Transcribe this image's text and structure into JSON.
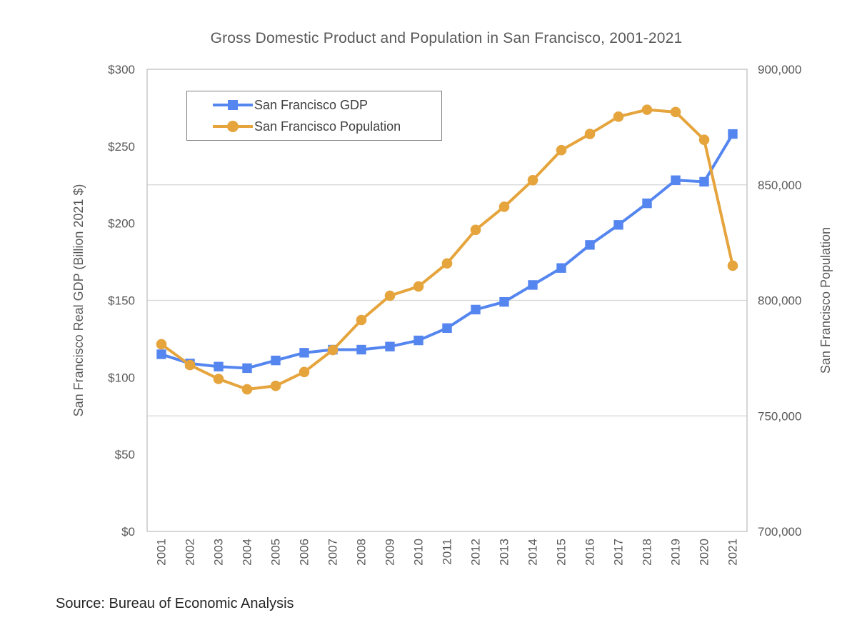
{
  "title": {
    "text": "Gross Domestic Product and Population in San Francisco, 2001-2021"
  },
  "source_note": "Source: Bureau of Economic Analysis",
  "colors": {
    "gdp_series": "#5586F0",
    "population_series": "#E5A43C",
    "gridline": "#D6D6D6",
    "plot_border": "#BFBFBF",
    "axis_text": "#595959",
    "title_text": "#595959",
    "legend_text": "#3F3F3F",
    "legend_border": "#7F7F7F",
    "source_text": "#262626"
  },
  "legend": {
    "position": "top-left-inside",
    "items": [
      {
        "label": "San Francisco GDP",
        "color": "#5586F0",
        "marker": "square"
      },
      {
        "label": "San Francisco Population",
        "color": "#E5A43C",
        "marker": "circle"
      }
    ]
  },
  "chart_data": {
    "type": "line",
    "title": "Gross Domestic Product and Population in San Francisco, 2001-2021",
    "categories": [
      2001,
      2002,
      2003,
      2004,
      2005,
      2006,
      2007,
      2008,
      2009,
      2010,
      2011,
      2012,
      2013,
      2014,
      2015,
      2016,
      2017,
      2018,
      2019,
      2020,
      2021
    ],
    "series": [
      {
        "name": "San Francisco GDP",
        "axis": "left",
        "color": "#5586F0",
        "marker": "square",
        "values": [
          115,
          109,
          107,
          106,
          111,
          116,
          118,
          118,
          120,
          124,
          132,
          144,
          149,
          160,
          171,
          186,
          199,
          213,
          228,
          227,
          258
        ]
      },
      {
        "name": "San Francisco Population",
        "axis": "right",
        "color": "#E5A43C",
        "marker": "circle",
        "values": [
          781000,
          772000,
          766000,
          761500,
          763000,
          769000,
          778500,
          791500,
          802000,
          806000,
          816000,
          830500,
          840500,
          852000,
          865000,
          872000,
          879500,
          882500,
          881500,
          869500,
          815000
        ]
      }
    ],
    "left_axis": {
      "title": "San Francisco Real GDP  (Billion 2021 $)",
      "min": 0,
      "max": 300,
      "tick_values": [
        300,
        250,
        200,
        150,
        100,
        50,
        0
      ],
      "tick_labels": [
        "$300",
        "$250",
        "$200",
        "$150",
        "$100",
        "$50",
        "$0"
      ]
    },
    "right_axis": {
      "title": "San Francisco Population",
      "min": 700000,
      "max": 900000,
      "tick_values": [
        900000,
        850000,
        800000,
        750000,
        700000
      ],
      "tick_labels": [
        "900,000",
        "850,000",
        "800,000",
        "750,000",
        "700,000"
      ]
    },
    "x_axis": {
      "tick_rotation_degrees": -90
    },
    "gridlines": {
      "population_values": [
        850000,
        800000,
        750000
      ]
    },
    "legend_position": "top-left-inside"
  }
}
